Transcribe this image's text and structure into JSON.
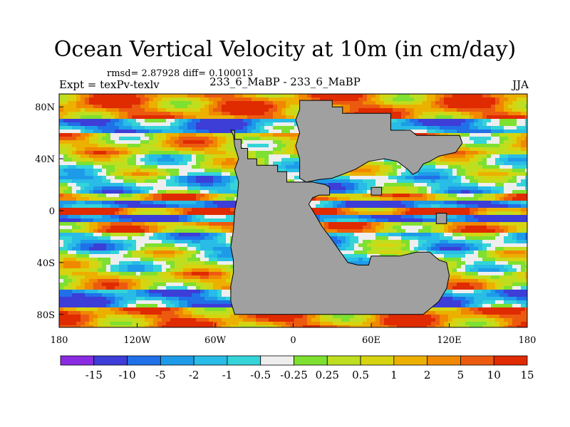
{
  "chart_data": {
    "type": "heatmap",
    "title": "Ocean Vertical Velocity at 10m (in cm/day)",
    "stats_label": "rmsd= 2.87928  diff= 0.100013",
    "experiment_label": "Expt = texPv-texlv",
    "case_label": "233_6_MaBP - 233_6_MaBP",
    "season_label": "JJA",
    "xlim": [
      -180,
      180
    ],
    "ylim": [
      -90,
      90
    ],
    "x_ticks": [
      {
        "value": -180,
        "label": "180"
      },
      {
        "value": -120,
        "label": "120W"
      },
      {
        "value": -60,
        "label": "60W"
      },
      {
        "value": 0,
        "label": "0"
      },
      {
        "value": 60,
        "label": "60E"
      },
      {
        "value": 120,
        "label": "120E"
      },
      {
        "value": 180,
        "label": "180"
      }
    ],
    "y_ticks": [
      {
        "value": 80,
        "label": "80N"
      },
      {
        "value": 40,
        "label": "40N"
      },
      {
        "value": 0,
        "label": "0"
      },
      {
        "value": -40,
        "label": "40S"
      },
      {
        "value": -80,
        "label": "80S"
      }
    ],
    "colorbar": {
      "colors": [
        "#8a2be2",
        "#3d3dd8",
        "#2070e8",
        "#1e9be8",
        "#28bce6",
        "#34d4d8",
        "#eeeeee",
        "#7ee030",
        "#bede20",
        "#d6d410",
        "#ecb000",
        "#f08800",
        "#ec5a10",
        "#e02a00"
      ],
      "labels": [
        "-15",
        "-10",
        "-5",
        "-2",
        "-1",
        "-0.5",
        "-0.25",
        "0.25",
        "0.5",
        "1",
        "2",
        "5",
        "10",
        "15"
      ]
    },
    "land_color": "#a0a0a0",
    "land_regions": [
      {
        "name": "continent-west",
        "lonlat": [
          [
            -48,
            62
          ],
          [
            -45,
            62
          ],
          [
            -45,
            55
          ],
          [
            -40,
            55
          ],
          [
            -40,
            48
          ],
          [
            -35,
            48
          ],
          [
            -35,
            40
          ],
          [
            -28,
            40
          ],
          [
            -28,
            35
          ],
          [
            -20,
            35
          ],
          [
            -12,
            35
          ],
          [
            -12,
            30
          ],
          [
            -5,
            30
          ],
          [
            -5,
            22
          ],
          [
            5,
            22
          ],
          [
            15,
            22
          ],
          [
            25,
            20
          ],
          [
            28,
            18
          ],
          [
            28,
            12
          ],
          [
            20,
            12
          ],
          [
            15,
            10
          ],
          [
            12,
            5
          ],
          [
            15,
            0
          ],
          [
            18,
            -5
          ],
          [
            22,
            -12
          ],
          [
            28,
            -20
          ],
          [
            35,
            -30
          ],
          [
            42,
            -40
          ],
          [
            50,
            -42
          ],
          [
            58,
            -42
          ],
          [
            60,
            -35
          ],
          [
            70,
            -35
          ],
          [
            82,
            -35
          ],
          [
            95,
            -32
          ],
          [
            105,
            -32
          ],
          [
            112,
            -38
          ],
          [
            118,
            -40
          ],
          [
            120,
            -50
          ],
          [
            118,
            -60
          ],
          [
            112,
            -70
          ],
          [
            100,
            -80
          ],
          [
            -45,
            -80
          ],
          [
            -48,
            -70
          ],
          [
            -48,
            -58
          ],
          [
            -46,
            -48
          ],
          [
            -46,
            -38
          ],
          [
            -48,
            -28
          ],
          [
            -46,
            -15
          ],
          [
            -45,
            0
          ],
          [
            -43,
            10
          ],
          [
            -42,
            22
          ],
          [
            -45,
            32
          ],
          [
            -42,
            40
          ],
          [
            -45,
            50
          ],
          [
            -46,
            58
          ]
        ]
      },
      {
        "name": "continent-north",
        "lonlat": [
          [
            5,
            85
          ],
          [
            30,
            85
          ],
          [
            30,
            80
          ],
          [
            38,
            80
          ],
          [
            38,
            75
          ],
          [
            45,
            75
          ],
          [
            60,
            75
          ],
          [
            75,
            75
          ],
          [
            75,
            62
          ],
          [
            90,
            62
          ],
          [
            95,
            58
          ],
          [
            110,
            58
          ],
          [
            128,
            58
          ],
          [
            130,
            52
          ],
          [
            125,
            45
          ],
          [
            112,
            42
          ],
          [
            105,
            38
          ],
          [
            100,
            36
          ],
          [
            96,
            30
          ],
          [
            92,
            28
          ],
          [
            88,
            32
          ],
          [
            80,
            38
          ],
          [
            70,
            40
          ],
          [
            58,
            38
          ],
          [
            48,
            32
          ],
          [
            38,
            28
          ],
          [
            30,
            25
          ],
          [
            20,
            24
          ],
          [
            10,
            22
          ],
          [
            5,
            25
          ],
          [
            5,
            40
          ],
          [
            2,
            50
          ],
          [
            5,
            60
          ],
          [
            2,
            70
          ],
          [
            5,
            78
          ]
        ]
      },
      {
        "name": "island-ne",
        "lonlat": [
          [
            110,
            -2
          ],
          [
            118,
            -2
          ],
          [
            118,
            -10
          ],
          [
            110,
            -10
          ]
        ]
      },
      {
        "name": "island-arabia",
        "lonlat": [
          [
            60,
            18
          ],
          [
            68,
            18
          ],
          [
            68,
            12
          ],
          [
            60,
            12
          ]
        ]
      }
    ]
  }
}
